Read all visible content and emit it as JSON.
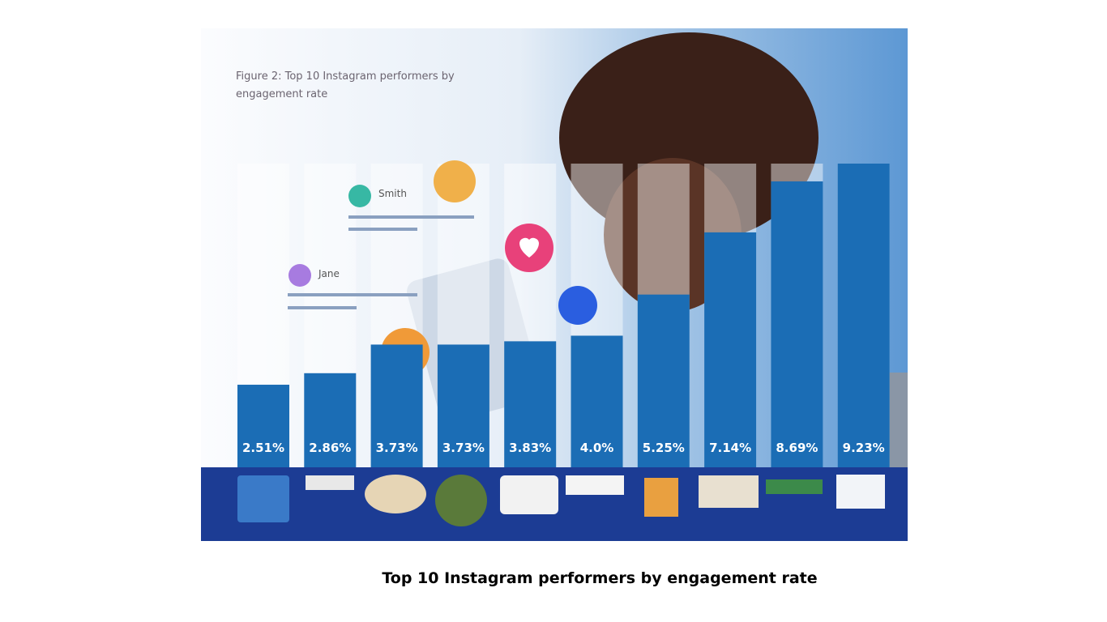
{
  "chart_data": {
    "type": "bar",
    "title": "Figure 2: Top 10 Instagram performers by engagement rate",
    "caption": "Top 10 Instagram performers by engagement rate",
    "values": [
      2.51,
      2.86,
      3.73,
      3.73,
      3.83,
      4.0,
      5.25,
      7.14,
      8.69,
      9.23
    ],
    "value_labels": [
      "2.51%",
      "2.86%",
      "3.73%",
      "3.73%",
      "3.83%",
      "4.0%",
      "5.25%",
      "7.14%",
      "8.69%",
      "9.23%"
    ],
    "color": "#1b6db5",
    "annotations": [
      "Jane",
      "Smith"
    ]
  }
}
